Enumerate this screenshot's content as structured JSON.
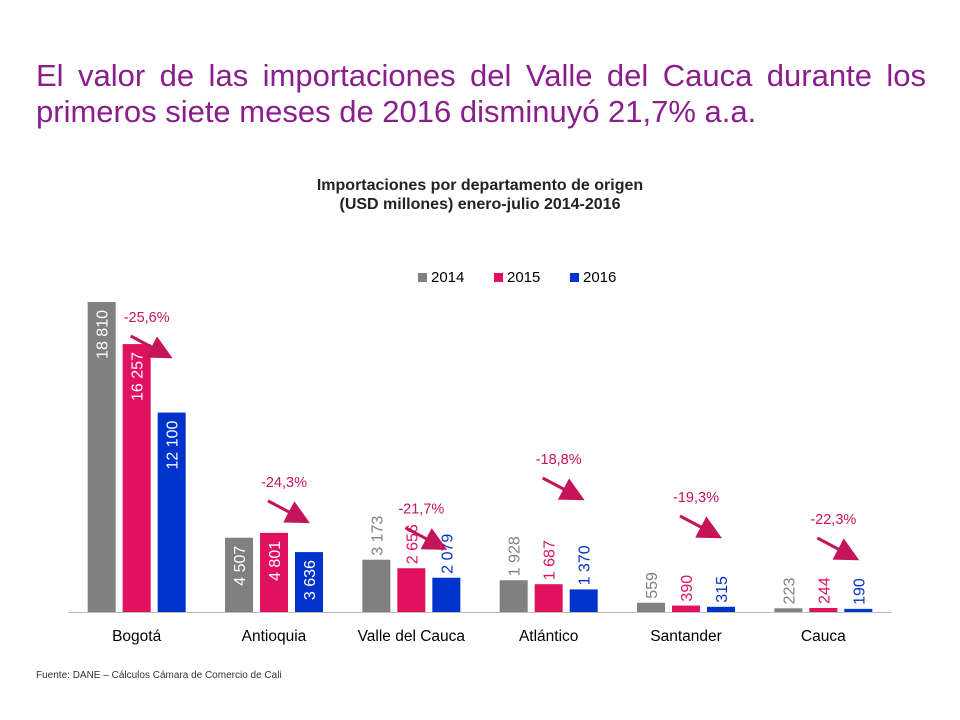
{
  "slide": {
    "title": "El valor de las importaciones del Valle del Cauca durante los primeros siete meses de 2016 disminuyó 21,7% a.a.",
    "source": "Fuente: DANE – Cálculos Cámara de Comercio de Cali"
  },
  "chart_data": {
    "type": "bar",
    "title_line1": "Importaciones por departamento de origen",
    "title_line2": "(USD millones) enero-julio 2014-2016",
    "categories": [
      "Bogotá",
      "Antioquia",
      "Valle del Cauca",
      "Atlántico",
      "Santander",
      "Cauca"
    ],
    "series": [
      {
        "name": "2014",
        "color": "#808080",
        "values": [
          18810,
          4507,
          3173,
          1928,
          559,
          223
        ],
        "labels": [
          "18 810",
          "4 507",
          "3 173",
          "1 928",
          "559",
          "223"
        ]
      },
      {
        "name": "2015",
        "color": "#e0115f",
        "values": [
          16257,
          4801,
          2656,
          1687,
          390,
          244
        ],
        "labels": [
          "16 257",
          "4 801",
          "2 656",
          "1 687",
          "390",
          "244"
        ]
      },
      {
        "name": "2016",
        "color": "#0033cc",
        "values": [
          12100,
          3636,
          2079,
          1370,
          315,
          190
        ],
        "labels": [
          "12 100",
          "3 636",
          "2 079",
          "1 370",
          "315",
          "190"
        ]
      }
    ],
    "label_colors": [
      "#ffffff",
      "#ffffff",
      "#ffffff",
      "#ffffff",
      "#ffffff",
      "#ffffff"
    ],
    "variation_labels": [
      "-25,6%",
      "-24,3%",
      "-21,7%",
      "-18,8%",
      "-19,3%",
      "-22,3%"
    ],
    "arrow_color": "#c4145a",
    "legend_position": "top",
    "grid": false,
    "ylim": [
      0,
      18810
    ]
  }
}
